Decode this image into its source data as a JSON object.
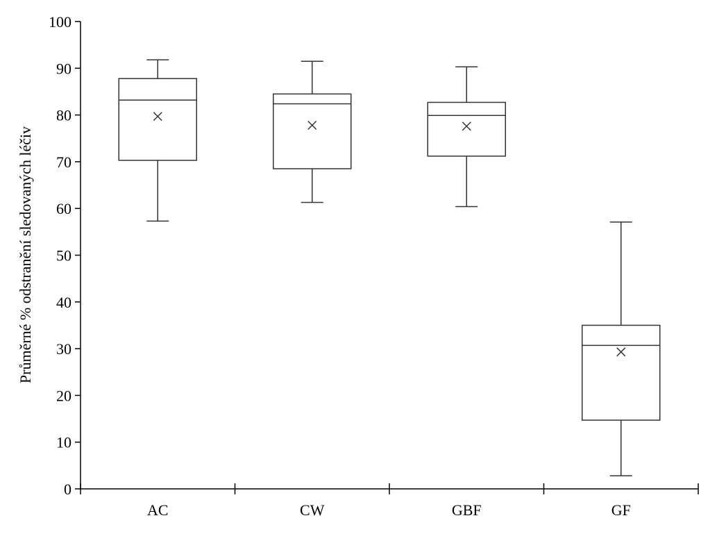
{
  "chart_data": {
    "type": "box",
    "title": "",
    "xlabel": "",
    "ylabel": "Průměrné % odstranění sledovaných léčiv",
    "ylim": [
      0,
      100
    ],
    "yticks": [
      "0",
      "10",
      "20",
      "30",
      "40",
      "50",
      "60",
      "70",
      "80",
      "90",
      "100"
    ],
    "ytick_values": [
      0,
      10,
      20,
      30,
      40,
      50,
      60,
      70,
      80,
      90,
      100
    ],
    "categories": [
      "AC",
      "CW",
      "GBF",
      "GF"
    ],
    "boxes": [
      {
        "category": "AC",
        "min": 57.3,
        "q1": 70.3,
        "median": 83.2,
        "q3": 87.8,
        "max": 91.8,
        "mean": 79.7
      },
      {
        "category": "CW",
        "min": 61.3,
        "q1": 68.5,
        "median": 82.4,
        "q3": 84.5,
        "max": 91.5,
        "mean": 77.8
      },
      {
        "category": "GBF",
        "min": 60.4,
        "q1": 71.2,
        "median": 79.9,
        "q3": 82.7,
        "max": 90.3,
        "mean": 77.6
      },
      {
        "category": "GF",
        "min": 2.8,
        "q1": 14.7,
        "median": 30.7,
        "q3": 35.0,
        "max": 57.1,
        "mean": 29.3
      }
    ],
    "grid": false,
    "legend": "none",
    "colors": {
      "line": "#333333",
      "box_fill": "#ffffff"
    }
  }
}
